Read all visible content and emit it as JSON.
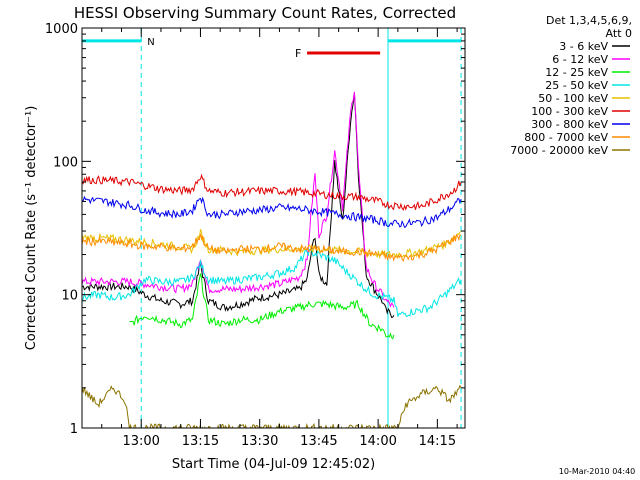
{
  "chart_data": {
    "type": "line",
    "title": "HESSI Observing Summary Count Rates, Corrected",
    "xlabel": "Start Time (04-Jul-09 12:45:02)",
    "ylabel": "Corrected Count Rate (s⁻¹ detector⁻¹)",
    "yscale": "log",
    "xlim": [
      0,
      97
    ],
    "ylim": [
      1,
      1000
    ],
    "xticks": [
      {
        "t": 15,
        "label": "13:00"
      },
      {
        "t": 30,
        "label": "13:15"
      },
      {
        "t": 45,
        "label": "13:30"
      },
      {
        "t": 60,
        "label": "13:45"
      },
      {
        "t": 75,
        "label": "14:00"
      },
      {
        "t": 90,
        "label": "14:15"
      }
    ],
    "yticks": [
      {
        "v": 1,
        "label": "1"
      },
      {
        "v": 10,
        "label": "10"
      },
      {
        "v": 100,
        "label": "100"
      },
      {
        "v": 1000,
        "label": "1000"
      }
    ],
    "legend_title": [
      "Det 1,3,4,5,6,9,",
      "Att 0"
    ],
    "legend_position": "right",
    "timestamp": "10-Mar-2010 04:40",
    "annotations": {
      "night_bar": {
        "label": "N",
        "start": 0,
        "end": 15,
        "y": 800,
        "color": "#00e5e5"
      },
      "night_bar_2": {
        "label": "",
        "start": 77.5,
        "end": 96,
        "y": 800,
        "color": "#00e5e5"
      },
      "flare_bar": {
        "label": "F",
        "start": 57,
        "end": 75.5,
        "y": 650,
        "color": "#e00000"
      },
      "vlines": [
        {
          "t": 15,
          "style": "dashed",
          "color": "#00e5e5"
        },
        {
          "t": 77.5,
          "style": "solid",
          "color": "#00e5e5"
        },
        {
          "t": 96,
          "style": "dashed",
          "color": "#00e5e5"
        }
      ]
    },
    "series": [
      {
        "name": "3 - 6 keV",
        "color": "#000000",
        "points": [
          [
            0,
            11.5
          ],
          [
            12,
            11.5
          ],
          [
            16,
            10
          ],
          [
            20,
            9
          ],
          [
            25,
            8.5
          ],
          [
            28,
            9
          ],
          [
            30,
            17
          ],
          [
            32,
            9
          ],
          [
            36,
            8
          ],
          [
            40,
            8.5
          ],
          [
            45,
            9.5
          ],
          [
            50,
            10
          ],
          [
            55,
            11
          ],
          [
            57,
            13
          ],
          [
            58,
            20
          ],
          [
            59,
            28
          ],
          [
            60,
            14
          ],
          [
            62,
            12
          ],
          [
            64,
            100
          ],
          [
            66,
            35
          ],
          [
            68,
            200
          ],
          [
            69,
            330
          ],
          [
            70,
            80
          ],
          [
            72,
            14
          ],
          [
            74,
            11
          ],
          [
            76,
            9
          ],
          [
            77,
            7.5
          ],
          [
            79,
            7
          ]
        ]
      },
      {
        "name": "6 - 12 keV",
        "color": "#ff00ff",
        "points": [
          [
            0,
            12.5
          ],
          [
            12,
            12.5
          ],
          [
            16,
            12
          ],
          [
            20,
            11.5
          ],
          [
            25,
            11
          ],
          [
            28,
            12
          ],
          [
            30,
            19
          ],
          [
            32,
            11
          ],
          [
            36,
            11
          ],
          [
            40,
            11
          ],
          [
            45,
            11.5
          ],
          [
            50,
            12
          ],
          [
            55,
            13.5
          ],
          [
            57,
            18
          ],
          [
            58,
            40
          ],
          [
            59,
            80
          ],
          [
            60,
            28
          ],
          [
            62,
            40
          ],
          [
            64,
            120
          ],
          [
            66,
            45
          ],
          [
            68,
            230
          ],
          [
            69,
            350
          ],
          [
            70,
            90
          ],
          [
            72,
            16
          ],
          [
            74,
            12
          ],
          [
            76,
            10
          ],
          [
            77,
            9
          ],
          [
            79,
            8
          ]
        ]
      },
      {
        "name": "12 - 25 keV",
        "color": "#00ee00",
        "points": [
          [
            12,
            6
          ],
          [
            16,
            7
          ],
          [
            20,
            6.5
          ],
          [
            25,
            6
          ],
          [
            28,
            6.5
          ],
          [
            30,
            14
          ],
          [
            32,
            6.5
          ],
          [
            36,
            6
          ],
          [
            40,
            6.5
          ],
          [
            45,
            6.5
          ],
          [
            50,
            7.5
          ],
          [
            55,
            8
          ],
          [
            58,
            8.5
          ],
          [
            62,
            8.5
          ],
          [
            66,
            8
          ],
          [
            70,
            8.5
          ],
          [
            73,
            6
          ],
          [
            76,
            5.5
          ],
          [
            77,
            5
          ],
          [
            79,
            5
          ]
        ]
      },
      {
        "name": "25 - 50 keV",
        "color": "#00e5e5",
        "points": [
          [
            0,
            9.5
          ],
          [
            4,
            10
          ],
          [
            8,
            9.5
          ],
          [
            12,
            10
          ],
          [
            16,
            13
          ],
          [
            20,
            12.5
          ],
          [
            25,
            12.5
          ],
          [
            28,
            13.5
          ],
          [
            30,
            17
          ],
          [
            32,
            13
          ],
          [
            36,
            12.5
          ],
          [
            40,
            13
          ],
          [
            45,
            13.5
          ],
          [
            50,
            14.5
          ],
          [
            54,
            16
          ],
          [
            57,
            21
          ],
          [
            60,
            20
          ],
          [
            64,
            18
          ],
          [
            68,
            14
          ],
          [
            72,
            11
          ],
          [
            74,
            10
          ],
          [
            77,
            9.5
          ],
          [
            79,
            9
          ],
          [
            80,
            7
          ],
          [
            84,
            7.5
          ],
          [
            88,
            8
          ],
          [
            92,
            10
          ],
          [
            96,
            13
          ]
        ]
      },
      {
        "name": "50 - 100 keV",
        "color": "#e6c000",
        "points": [
          [
            0,
            27
          ],
          [
            10,
            26
          ],
          [
            20,
            24
          ],
          [
            28,
            22
          ],
          [
            30,
            29
          ],
          [
            32,
            22
          ],
          [
            40,
            21
          ],
          [
            50,
            22
          ],
          [
            60,
            22
          ],
          [
            70,
            21
          ],
          [
            76,
            20
          ],
          [
            80,
            20
          ],
          [
            86,
            21
          ],
          [
            92,
            24
          ],
          [
            96,
            30
          ]
        ]
      },
      {
        "name": "100 - 300 keV",
        "color": "#e00000",
        "points": [
          [
            0,
            73
          ],
          [
            6,
            72
          ],
          [
            12,
            70
          ],
          [
            16,
            66
          ],
          [
            20,
            62
          ],
          [
            25,
            60
          ],
          [
            28,
            62
          ],
          [
            30,
            78
          ],
          [
            32,
            60
          ],
          [
            36,
            58
          ],
          [
            40,
            59
          ],
          [
            45,
            60
          ],
          [
            50,
            60
          ],
          [
            55,
            59
          ],
          [
            60,
            57
          ],
          [
            65,
            55
          ],
          [
            70,
            54
          ],
          [
            75,
            50
          ],
          [
            78,
            47
          ],
          [
            82,
            46
          ],
          [
            86,
            46
          ],
          [
            90,
            52
          ],
          [
            94,
            60
          ],
          [
            96,
            70
          ]
        ]
      },
      {
        "name": "300 - 800 keV",
        "color": "#0000ee",
        "points": [
          [
            0,
            52
          ],
          [
            6,
            50
          ],
          [
            12,
            47
          ],
          [
            16,
            43
          ],
          [
            20,
            41
          ],
          [
            25,
            40
          ],
          [
            28,
            43
          ],
          [
            30,
            55
          ],
          [
            32,
            40
          ],
          [
            36,
            40
          ],
          [
            40,
            42
          ],
          [
            45,
            43
          ],
          [
            50,
            45
          ],
          [
            55,
            44
          ],
          [
            60,
            42
          ],
          [
            65,
            40
          ],
          [
            70,
            38
          ],
          [
            75,
            36
          ],
          [
            78,
            34
          ],
          [
            82,
            34
          ],
          [
            86,
            35
          ],
          [
            90,
            38
          ],
          [
            94,
            46
          ],
          [
            96,
            52
          ]
        ]
      },
      {
        "name": "800 - 7000 keV",
        "color": "#ff8c00",
        "points": [
          [
            0,
            25
          ],
          [
            6,
            25
          ],
          [
            12,
            24
          ],
          [
            16,
            23
          ],
          [
            20,
            23
          ],
          [
            25,
            22
          ],
          [
            28,
            23
          ],
          [
            30,
            28
          ],
          [
            32,
            22
          ],
          [
            36,
            21
          ],
          [
            40,
            22
          ],
          [
            45,
            22
          ],
          [
            50,
            23
          ],
          [
            55,
            22
          ],
          [
            60,
            22
          ],
          [
            65,
            21
          ],
          [
            70,
            21
          ],
          [
            75,
            20
          ],
          [
            78,
            19
          ],
          [
            82,
            19
          ],
          [
            86,
            20
          ],
          [
            90,
            22
          ],
          [
            94,
            26
          ],
          [
            96,
            28
          ]
        ]
      },
      {
        "name": "7000 - 20000 keV",
        "color": "#8b7300",
        "points": [
          [
            0,
            2
          ],
          [
            4,
            1.5
          ],
          [
            8,
            2
          ],
          [
            11,
            1.6
          ],
          [
            12,
            1
          ],
          [
            80,
            1
          ],
          [
            82,
            1.5
          ],
          [
            86,
            1.8
          ],
          [
            90,
            2
          ],
          [
            93,
            1.6
          ],
          [
            96,
            2
          ]
        ]
      }
    ]
  }
}
